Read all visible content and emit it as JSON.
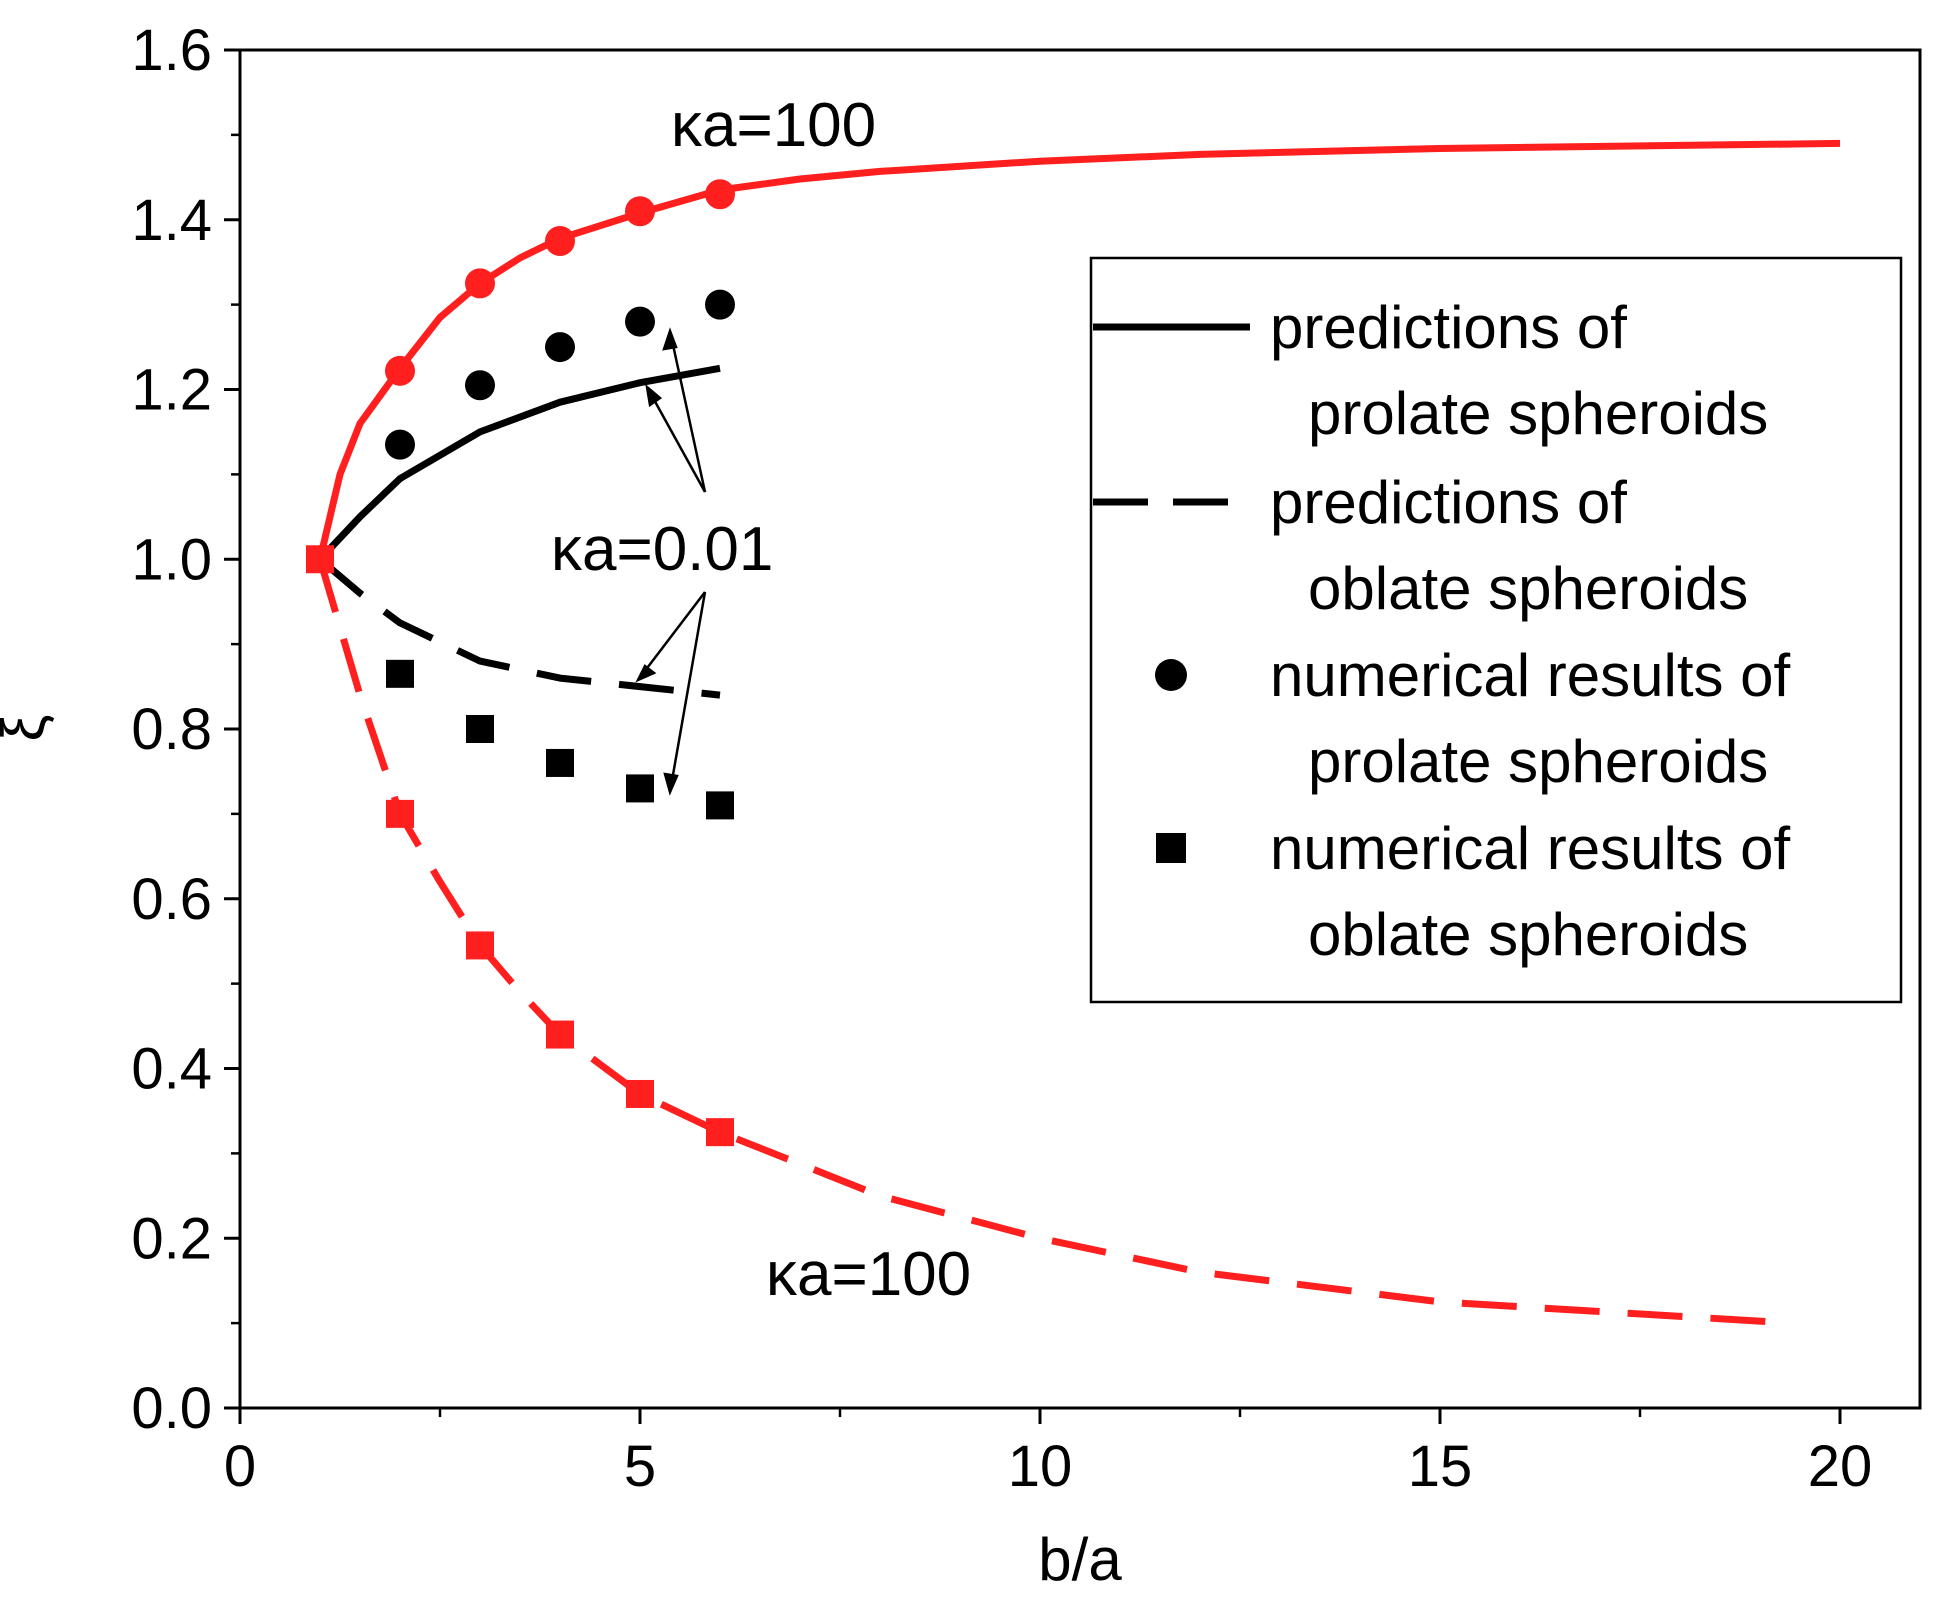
{
  "chart_data": {
    "type": "line",
    "title": "",
    "xlabel": "b/a",
    "ylabel": "ξ",
    "xlim": [
      0,
      21
    ],
    "ylim": [
      0,
      1.6
    ],
    "x_ticks": [
      0,
      5,
      10,
      15,
      20
    ],
    "y_ticks": [
      0.0,
      0.2,
      0.4,
      0.6,
      0.8,
      1.0,
      1.2,
      1.4,
      1.6
    ],
    "x_tick_labels": [
      "0",
      "5",
      "10",
      "15",
      "20"
    ],
    "y_tick_labels": [
      "0.0",
      "0.2",
      "0.4",
      "0.6",
      "0.8",
      "1.0",
      "1.2",
      "1.4",
      "1.6"
    ],
    "grid": false,
    "legend_position": "right",
    "legend": [
      {
        "label_lines": [
          "predictions of",
          "prolate spheroids"
        ],
        "style": "solid line"
      },
      {
        "label_lines": [
          "predictions of",
          "oblate spheroids"
        ],
        "style": "dashed line"
      },
      {
        "label_lines": [
          "numerical results of",
          "prolate spheroids"
        ],
        "style": "circle marker"
      },
      {
        "label_lines": [
          "numerical results of",
          "oblate spheroids"
        ],
        "style": "square marker"
      }
    ],
    "annotations": [
      {
        "text": "κa=100",
        "refers_to": "upper red curve"
      },
      {
        "text": "κa=0.01",
        "refers_to": "black curves and markers"
      },
      {
        "text": "κa=100",
        "refers_to": "lower red curve"
      }
    ],
    "series": [
      {
        "kind": "line",
        "style": "solid",
        "color": "#ff1f1f",
        "x": [
          1,
          1.25,
          1.5,
          2,
          2.5,
          3,
          3.5,
          4,
          5,
          6,
          7,
          8,
          10,
          12,
          15,
          20
        ],
        "y": [
          1.0,
          1.1,
          1.16,
          1.225,
          1.285,
          1.325,
          1.355,
          1.378,
          1.408,
          1.435,
          1.448,
          1.457,
          1.469,
          1.477,
          1.484,
          1.49
        ]
      },
      {
        "kind": "line",
        "style": "dashed",
        "color": "#ff1f1f",
        "x": [
          1,
          1.25,
          1.5,
          2,
          2.5,
          3,
          3.5,
          4,
          5,
          6,
          8,
          10,
          12,
          15,
          19.4
        ],
        "y": [
          1.0,
          0.92,
          0.84,
          0.7,
          0.62,
          0.545,
          0.49,
          0.44,
          0.37,
          0.325,
          0.25,
          0.2,
          0.16,
          0.125,
          0.1
        ]
      },
      {
        "kind": "line",
        "style": "solid",
        "color": "#000000",
        "x": [
          1,
          1.5,
          2,
          3,
          4,
          5,
          6
        ],
        "y": [
          1.0,
          1.05,
          1.095,
          1.15,
          1.185,
          1.208,
          1.225
        ]
      },
      {
        "kind": "line",
        "style": "dashed",
        "color": "#000000",
        "x": [
          1,
          1.5,
          2,
          3,
          4,
          5,
          6
        ],
        "y": [
          1.0,
          0.96,
          0.925,
          0.88,
          0.86,
          0.85,
          0.84
        ]
      },
      {
        "kind": "marker",
        "marker": "circle",
        "color": "#ff1f1f",
        "x": [
          2,
          3,
          4,
          5,
          6
        ],
        "y": [
          1.222,
          1.325,
          1.375,
          1.41,
          1.43
        ]
      },
      {
        "kind": "marker",
        "marker": "square",
        "color": "#ff1f1f",
        "x": [
          1,
          2,
          3,
          4,
          5,
          6
        ],
        "y": [
          1.0,
          0.7,
          0.545,
          0.44,
          0.37,
          0.325
        ]
      },
      {
        "kind": "marker",
        "marker": "circle",
        "color": "#000000",
        "x": [
          2,
          3,
          4,
          5,
          6
        ],
        "y": [
          1.135,
          1.205,
          1.25,
          1.28,
          1.3
        ]
      },
      {
        "kind": "marker",
        "marker": "square",
        "color": "#000000",
        "x": [
          2,
          3,
          4,
          5,
          6
        ],
        "y": [
          0.865,
          0.8,
          0.76,
          0.73,
          0.71
        ]
      }
    ]
  }
}
